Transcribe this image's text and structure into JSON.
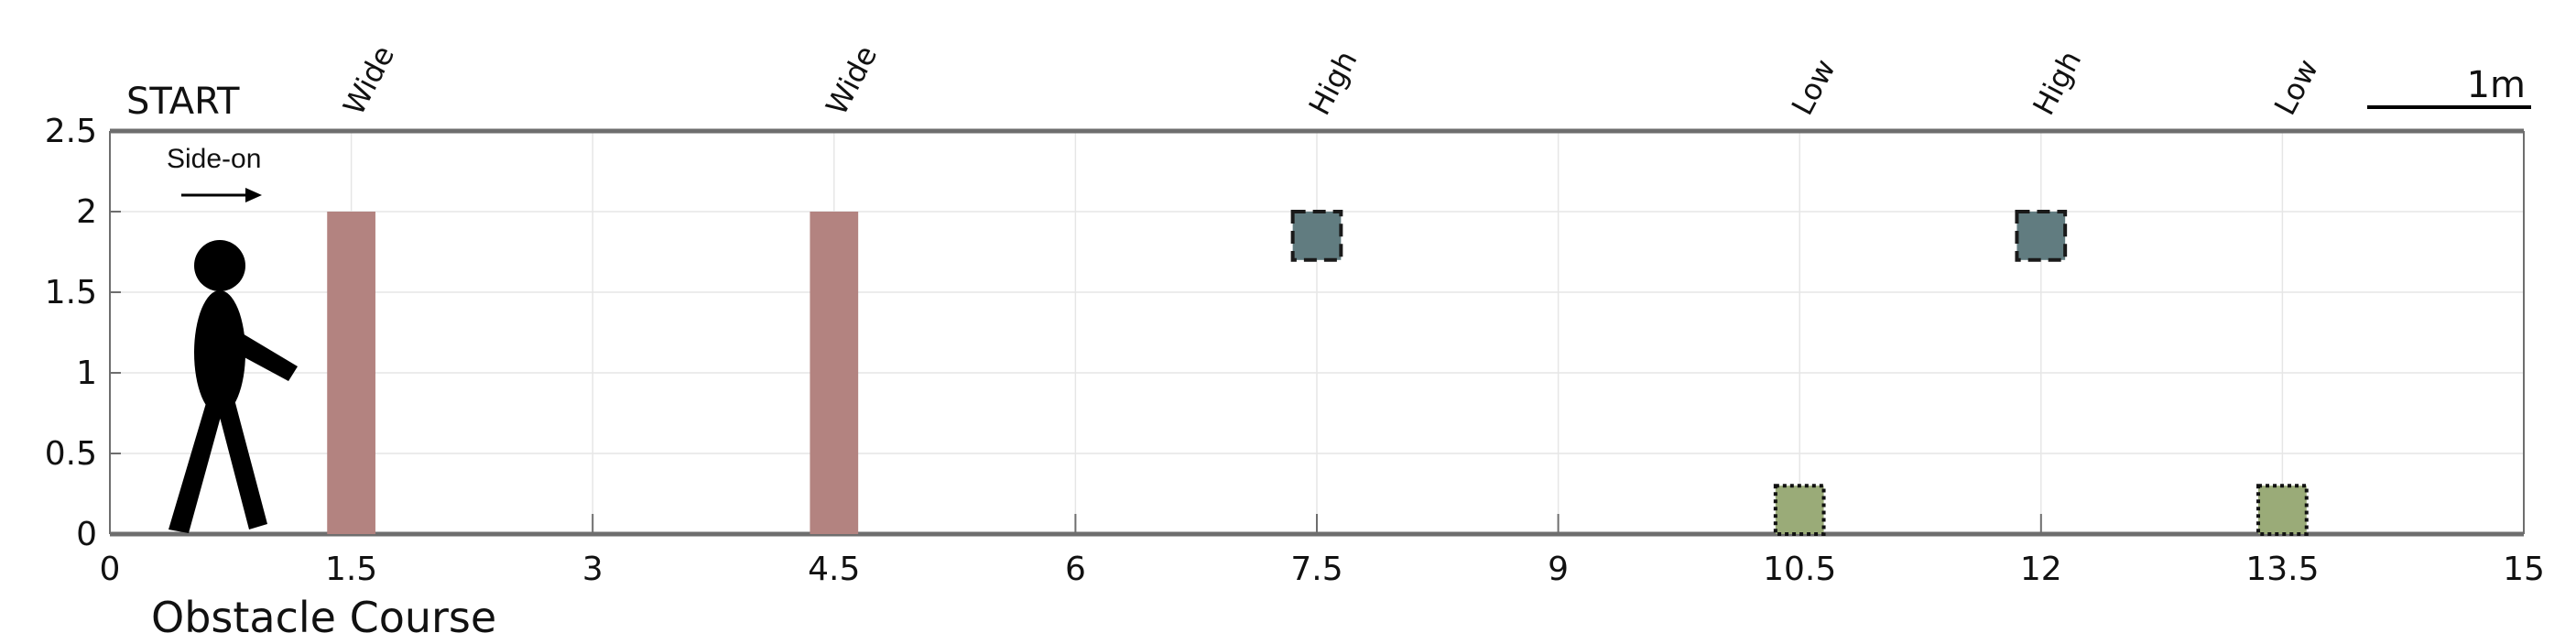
{
  "chart_data": {
    "type": "diagram",
    "title": "Obstacle Course",
    "start_label": "START",
    "direction_label": "Side-on",
    "scale_bar_label": "1m",
    "xlim": [
      0,
      15
    ],
    "ylim": [
      0,
      2.5
    ],
    "x_ticks": [
      0,
      1.5,
      3,
      4.5,
      6,
      7.5,
      9,
      10.5,
      12,
      13.5,
      15
    ],
    "x_tick_labels": [
      "0",
      "1.5",
      "3",
      "4.5",
      "6",
      "7.5",
      "9",
      "10.5",
      "12",
      "13.5",
      "15"
    ],
    "y_ticks": [
      0,
      0.5,
      1,
      1.5,
      2,
      2.5
    ],
    "y_tick_labels": [
      "0",
      "0.5",
      "1",
      "1.5",
      "2",
      "2.5"
    ],
    "grid": true,
    "obstacles": [
      {
        "label": "Wide",
        "kind": "wide",
        "x": 1.5,
        "x0": 1.35,
        "x1": 1.65,
        "y0": 0,
        "y1": 2
      },
      {
        "label": "Wide",
        "kind": "wide",
        "x": 4.5,
        "x0": 4.35,
        "x1": 4.65,
        "y0": 0,
        "y1": 2
      },
      {
        "label": "High",
        "kind": "high",
        "x": 7.5,
        "x0": 7.35,
        "x1": 7.65,
        "y0": 1.7,
        "y1": 2
      },
      {
        "label": "Low",
        "kind": "low",
        "x": 10.5,
        "x0": 10.35,
        "x1": 10.65,
        "y0": 0,
        "y1": 0.3
      },
      {
        "label": "High",
        "kind": "high",
        "x": 12,
        "x0": 11.85,
        "x1": 12.15,
        "y0": 1.7,
        "y1": 2
      },
      {
        "label": "Low",
        "kind": "low",
        "x": 13.5,
        "x0": 13.35,
        "x1": 13.65,
        "y0": 0,
        "y1": 0.3
      }
    ],
    "colors": {
      "wide": "#b38380",
      "high": "#617c80",
      "low": "#9aab78",
      "axis": "#6e6e6e",
      "grid": "#e6e6e6",
      "figure": "#000000"
    }
  }
}
